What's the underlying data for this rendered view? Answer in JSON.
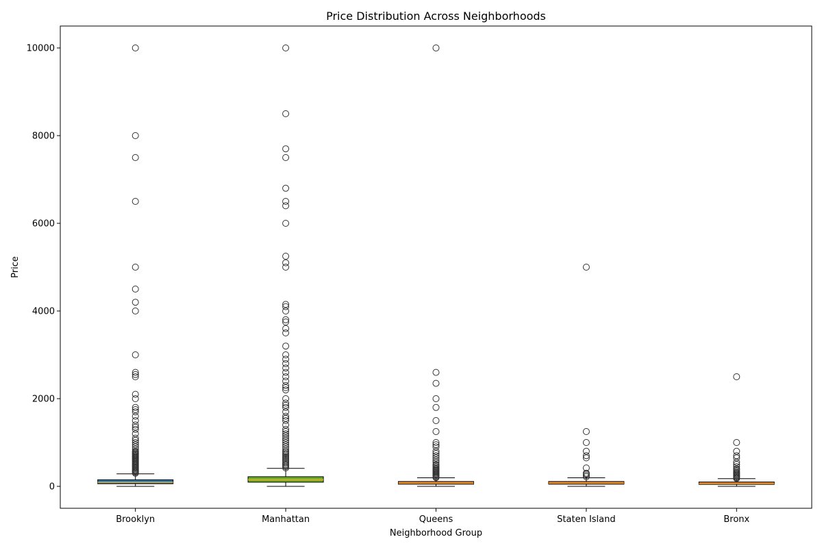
{
  "chart_data": {
    "type": "box",
    "title": "Price Distribution Across Neighborhoods",
    "xlabel": "Neighborhood Group",
    "ylabel": "Price",
    "ylim": [
      -500,
      10500
    ],
    "yticks": [
      0,
      2000,
      4000,
      6000,
      8000,
      10000
    ],
    "ytick_labels": [
      "0",
      "2000",
      "4000",
      "6000",
      "8000",
      "10000"
    ],
    "grid": false,
    "legend": "none",
    "categories": [
      "Brooklyn",
      "Manhattan",
      "Queens",
      "Staten Island",
      "Bronx"
    ],
    "boxes": [
      {
        "name": "Brooklyn",
        "color": "#1f77b4",
        "whisker_low": 0,
        "q1": 60,
        "median": 90,
        "q3": 150,
        "whisker_high": 285,
        "outliers": [
          300,
          320,
          340,
          360,
          380,
          400,
          420,
          440,
          460,
          480,
          500,
          520,
          540,
          560,
          580,
          600,
          620,
          640,
          660,
          680,
          700,
          720,
          740,
          760,
          780,
          800,
          850,
          900,
          950,
          1000,
          1050,
          1100,
          1200,
          1300,
          1350,
          1400,
          1500,
          1600,
          1700,
          1750,
          1800,
          2000,
          2100,
          2500,
          2550,
          2600,
          3000,
          4000,
          4200,
          4500,
          5000,
          6500,
          7500,
          8000,
          10000
        ]
      },
      {
        "name": "Manhattan",
        "color": "#6ab02b",
        "whisker_low": 0,
        "q1": 95,
        "median": 150,
        "q3": 220,
        "whisker_high": 410,
        "outliers": [
          420,
          450,
          480,
          500,
          530,
          560,
          590,
          620,
          650,
          680,
          710,
          740,
          770,
          800,
          850,
          900,
          950,
          1000,
          1050,
          1100,
          1150,
          1200,
          1250,
          1300,
          1400,
          1500,
          1550,
          1600,
          1700,
          1800,
          1850,
          1900,
          2000,
          2200,
          2250,
          2300,
          2400,
          2500,
          2600,
          2700,
          2800,
          2900,
          3000,
          3200,
          3500,
          3600,
          3750,
          3800,
          4000,
          4100,
          4150,
          5000,
          5100,
          5250,
          6000,
          6400,
          6500,
          6800,
          7500,
          7700,
          8500,
          10000
        ]
      },
      {
        "name": "Queens",
        "color": "#e8703a",
        "whisker_low": 0,
        "q1": 50,
        "median": 75,
        "q3": 110,
        "whisker_high": 195,
        "outliers": [
          200,
          220,
          240,
          260,
          280,
          300,
          320,
          340,
          360,
          380,
          400,
          420,
          450,
          480,
          500,
          550,
          600,
          650,
          700,
          750,
          800,
          900,
          950,
          1000,
          1250,
          1500,
          1800,
          2000,
          2350,
          2600,
          10000
        ]
      },
      {
        "name": "Staten Island",
        "color": "#e8703a",
        "whisker_low": 0,
        "q1": 50,
        "median": 75,
        "q3": 110,
        "whisker_high": 195,
        "outliers": [
          220,
          250,
          280,
          300,
          420,
          650,
          700,
          800,
          1000,
          1250,
          5000
        ]
      },
      {
        "name": "Bronx",
        "color": "#e8703a",
        "whisker_low": 0,
        "q1": 45,
        "median": 65,
        "q3": 99,
        "whisker_high": 175,
        "outliers": [
          180,
          200,
          220,
          240,
          260,
          280,
          300,
          320,
          350,
          380,
          400,
          450,
          500,
          550,
          650,
          700,
          800,
          1000,
          2500
        ]
      }
    ]
  }
}
